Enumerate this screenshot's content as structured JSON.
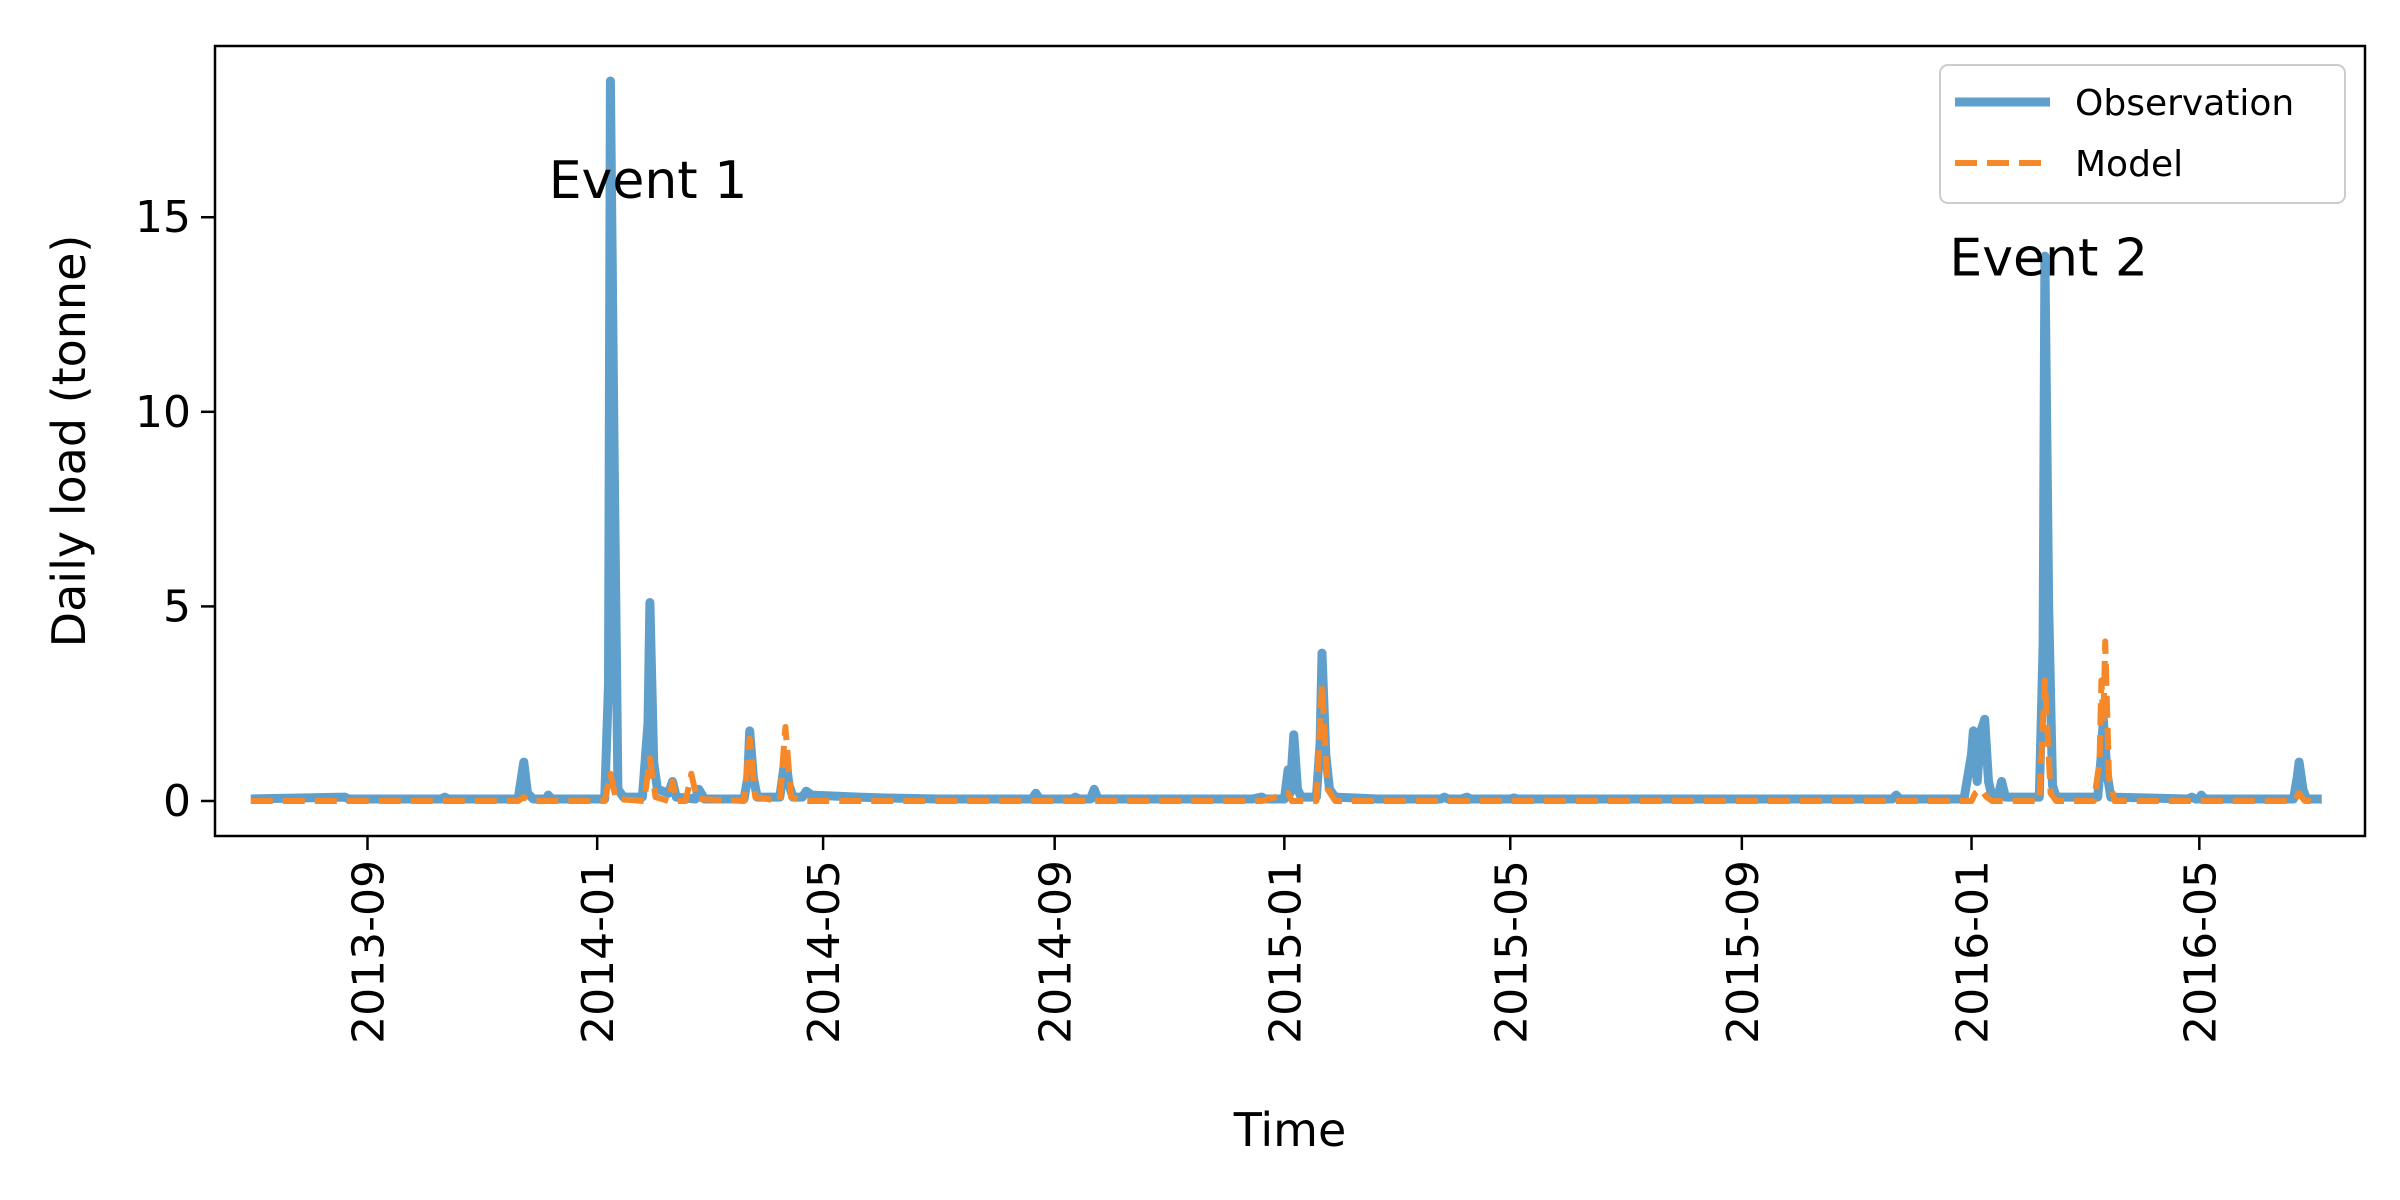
{
  "chart_data": {
    "type": "line",
    "title": "",
    "xlabel": "Time",
    "ylabel": "Daily load (tonne)",
    "xlim": [
      "2013-06-12",
      "2016-07-28"
    ],
    "ylim": [
      -0.9,
      19.4
    ],
    "x_ticks": [
      "2013-09-01",
      "2014-01-01",
      "2014-05-01",
      "2014-09-01",
      "2015-01-01",
      "2015-05-01",
      "2015-09-01",
      "2016-01-01",
      "2016-05-01"
    ],
    "x_tick_labels": [
      "2013-09",
      "2014-01",
      "2014-05",
      "2014-09",
      "2015-01",
      "2015-05",
      "2015-09",
      "2016-01",
      "2016-05"
    ],
    "y_ticks": [
      0,
      5,
      10,
      15
    ],
    "y_tick_labels": [
      "0",
      "5",
      "10",
      "15"
    ],
    "grid": false,
    "legend": "top-right",
    "colors": {
      "Observation": "#5f9fcc",
      "Model": "#f5892a"
    },
    "annotations": [
      {
        "text": "Event 1",
        "x": "2014-01-28",
        "y": 15.5
      },
      {
        "text": "Event 2",
        "x": "2016-02-11",
        "y": 13.5
      }
    ],
    "series": [
      {
        "name": "Observation",
        "style": "solid",
        "points": [
          [
            "2013-07-01",
            0.05
          ],
          [
            "2013-08-20",
            0.1
          ],
          [
            "2013-08-22",
            0.05
          ],
          [
            "2013-10-10",
            0.05
          ],
          [
            "2013-10-12",
            0.1
          ],
          [
            "2013-10-14",
            0.05
          ],
          [
            "2013-11-20",
            0.05
          ],
          [
            "2013-11-23",
            1.0
          ],
          [
            "2013-11-25",
            0.2
          ],
          [
            "2013-11-28",
            0.05
          ],
          [
            "2013-12-05",
            0.05
          ],
          [
            "2013-12-06",
            0.15
          ],
          [
            "2013-12-08",
            0.05
          ],
          [
            "2014-01-05",
            0.05
          ],
          [
            "2014-01-07",
            3.0
          ],
          [
            "2014-01-08",
            18.5
          ],
          [
            "2014-01-10",
            9.0
          ],
          [
            "2014-01-12",
            0.3
          ],
          [
            "2014-01-15",
            0.1
          ],
          [
            "2014-01-25",
            0.1
          ],
          [
            "2014-01-28",
            2.0
          ],
          [
            "2014-01-29",
            5.1
          ],
          [
            "2014-01-31",
            1.0
          ],
          [
            "2014-02-02",
            0.3
          ],
          [
            "2014-02-08",
            0.2
          ],
          [
            "2014-02-10",
            0.5
          ],
          [
            "2014-02-12",
            0.1
          ],
          [
            "2014-02-22",
            0.05
          ],
          [
            "2014-02-24",
            0.3
          ],
          [
            "2014-02-27",
            0.05
          ],
          [
            "2014-03-05",
            0.05
          ],
          [
            "2014-03-20",
            0.05
          ],
          [
            "2014-03-22",
            0.6
          ],
          [
            "2014-03-23",
            1.8
          ],
          [
            "2014-03-25",
            0.6
          ],
          [
            "2014-03-27",
            0.1
          ],
          [
            "2014-04-08",
            0.1
          ],
          [
            "2014-04-10",
            0.8
          ],
          [
            "2014-04-11",
            1.1
          ],
          [
            "2014-04-13",
            0.4
          ],
          [
            "2014-04-15",
            0.1
          ],
          [
            "2014-04-20",
            0.1
          ],
          [
            "2014-04-22",
            0.25
          ],
          [
            "2014-04-25",
            0.15
          ],
          [
            "2014-05-20",
            0.1
          ],
          [
            "2014-06-01",
            0.08
          ],
          [
            "2014-07-01",
            0.05
          ],
          [
            "2014-08-20",
            0.05
          ],
          [
            "2014-08-22",
            0.2
          ],
          [
            "2014-08-24",
            0.05
          ],
          [
            "2014-09-10",
            0.05
          ],
          [
            "2014-09-12",
            0.1
          ],
          [
            "2014-09-14",
            0.05
          ],
          [
            "2014-09-20",
            0.05
          ],
          [
            "2014-09-22",
            0.3
          ],
          [
            "2014-09-24",
            0.05
          ],
          [
            "2014-12-15",
            0.05
          ],
          [
            "2014-12-20",
            0.1
          ],
          [
            "2014-12-22",
            0.05
          ],
          [
            "2015-01-01",
            0.05
          ],
          [
            "2015-01-03",
            0.8
          ],
          [
            "2015-01-04",
            0.2
          ],
          [
            "2015-01-06",
            1.7
          ],
          [
            "2015-01-08",
            0.3
          ],
          [
            "2015-01-10",
            0.1
          ],
          [
            "2015-01-18",
            0.1
          ],
          [
            "2015-01-20",
            1.5
          ],
          [
            "2015-01-21",
            3.8
          ],
          [
            "2015-01-23",
            1.2
          ],
          [
            "2015-01-25",
            0.3
          ],
          [
            "2015-01-28",
            0.1
          ],
          [
            "2015-02-20",
            0.05
          ],
          [
            "2015-03-25",
            0.05
          ],
          [
            "2015-03-27",
            0.1
          ],
          [
            "2015-03-29",
            0.05
          ],
          [
            "2015-04-05",
            0.05
          ],
          [
            "2015-04-08",
            0.1
          ],
          [
            "2015-04-10",
            0.05
          ],
          [
            "2015-05-01",
            0.05
          ],
          [
            "2015-05-03",
            0.08
          ],
          [
            "2015-05-05",
            0.05
          ],
          [
            "2015-11-20",
            0.05
          ],
          [
            "2015-11-22",
            0.15
          ],
          [
            "2015-11-24",
            0.05
          ],
          [
            "2015-12-28",
            0.05
          ],
          [
            "2016-01-01",
            1.2
          ],
          [
            "2016-01-02",
            1.8
          ],
          [
            "2016-01-04",
            0.5
          ],
          [
            "2016-01-06",
            1.8
          ],
          [
            "2016-01-08",
            2.1
          ],
          [
            "2016-01-10",
            0.5
          ],
          [
            "2016-01-12",
            0.1
          ],
          [
            "2016-01-15",
            0.1
          ],
          [
            "2016-01-17",
            0.5
          ],
          [
            "2016-01-19",
            0.1
          ],
          [
            "2016-02-06",
            0.1
          ],
          [
            "2016-02-08",
            4.0
          ],
          [
            "2016-02-09",
            14.0
          ],
          [
            "2016-02-11",
            5.0
          ],
          [
            "2016-02-13",
            0.4
          ],
          [
            "2016-02-15",
            0.1
          ],
          [
            "2016-03-08",
            0.1
          ],
          [
            "2016-03-10",
            1.2
          ],
          [
            "2016-03-11",
            2.1
          ],
          [
            "2016-03-13",
            0.7
          ],
          [
            "2016-03-15",
            0.1
          ],
          [
            "2016-04-25",
            0.05
          ],
          [
            "2016-04-27",
            0.1
          ],
          [
            "2016-04-29",
            0.05
          ],
          [
            "2016-05-01",
            0.05
          ],
          [
            "2016-05-02",
            0.15
          ],
          [
            "2016-05-04",
            0.05
          ],
          [
            "2016-06-20",
            0.05
          ],
          [
            "2016-06-22",
            0.6
          ],
          [
            "2016-06-23",
            1.0
          ],
          [
            "2016-06-25",
            0.3
          ],
          [
            "2016-06-27",
            0.05
          ],
          [
            "2016-07-05",
            0.05
          ]
        ]
      },
      {
        "name": "Model",
        "style": "dashed",
        "points": [
          [
            "2013-07-01",
            0.0
          ],
          [
            "2013-11-20",
            0.0
          ],
          [
            "2013-11-23",
            0.1
          ],
          [
            "2013-11-26",
            0.0
          ],
          [
            "2014-01-05",
            0.0
          ],
          [
            "2014-01-08",
            0.7
          ],
          [
            "2014-01-11",
            0.05
          ],
          [
            "2014-01-26",
            0.0
          ],
          [
            "2014-01-29",
            1.1
          ],
          [
            "2014-02-01",
            0.1
          ],
          [
            "2014-02-08",
            0.0
          ],
          [
            "2014-02-10",
            0.5
          ],
          [
            "2014-02-12",
            0.0
          ],
          [
            "2014-02-17",
            0.0
          ],
          [
            "2014-02-20",
            0.7
          ],
          [
            "2014-02-23",
            0.05
          ],
          [
            "2014-03-20",
            0.0
          ],
          [
            "2014-03-23",
            1.6
          ],
          [
            "2014-03-26",
            0.1
          ],
          [
            "2014-04-08",
            0.0
          ],
          [
            "2014-04-11",
            1.9
          ],
          [
            "2014-04-14",
            0.1
          ],
          [
            "2014-04-20",
            0.0
          ],
          [
            "2014-12-20",
            0.0
          ],
          [
            "2015-01-03",
            0.2
          ],
          [
            "2015-01-05",
            0.0
          ],
          [
            "2015-01-18",
            0.0
          ],
          [
            "2015-01-21",
            3.0
          ],
          [
            "2015-01-24",
            0.3
          ],
          [
            "2015-01-28",
            0.0
          ],
          [
            "2016-01-01",
            0.0
          ],
          [
            "2016-01-03",
            0.2
          ],
          [
            "2016-01-06",
            0.3
          ],
          [
            "2016-01-09",
            0.1
          ],
          [
            "2016-01-12",
            0.0
          ],
          [
            "2016-02-06",
            0.0
          ],
          [
            "2016-02-09",
            3.1
          ],
          [
            "2016-02-12",
            0.2
          ],
          [
            "2016-02-15",
            0.0
          ],
          [
            "2016-03-06",
            0.0
          ],
          [
            "2016-03-09",
            1.0
          ],
          [
            "2016-03-10",
            3.1
          ],
          [
            "2016-03-11",
            2.0
          ],
          [
            "2016-03-12",
            4.1
          ],
          [
            "2016-03-14",
            0.6
          ],
          [
            "2016-03-17",
            0.0
          ],
          [
            "2016-06-20",
            0.0
          ],
          [
            "2016-06-23",
            0.2
          ],
          [
            "2016-06-26",
            0.0
          ],
          [
            "2016-07-05",
            0.0
          ]
        ]
      }
    ]
  }
}
